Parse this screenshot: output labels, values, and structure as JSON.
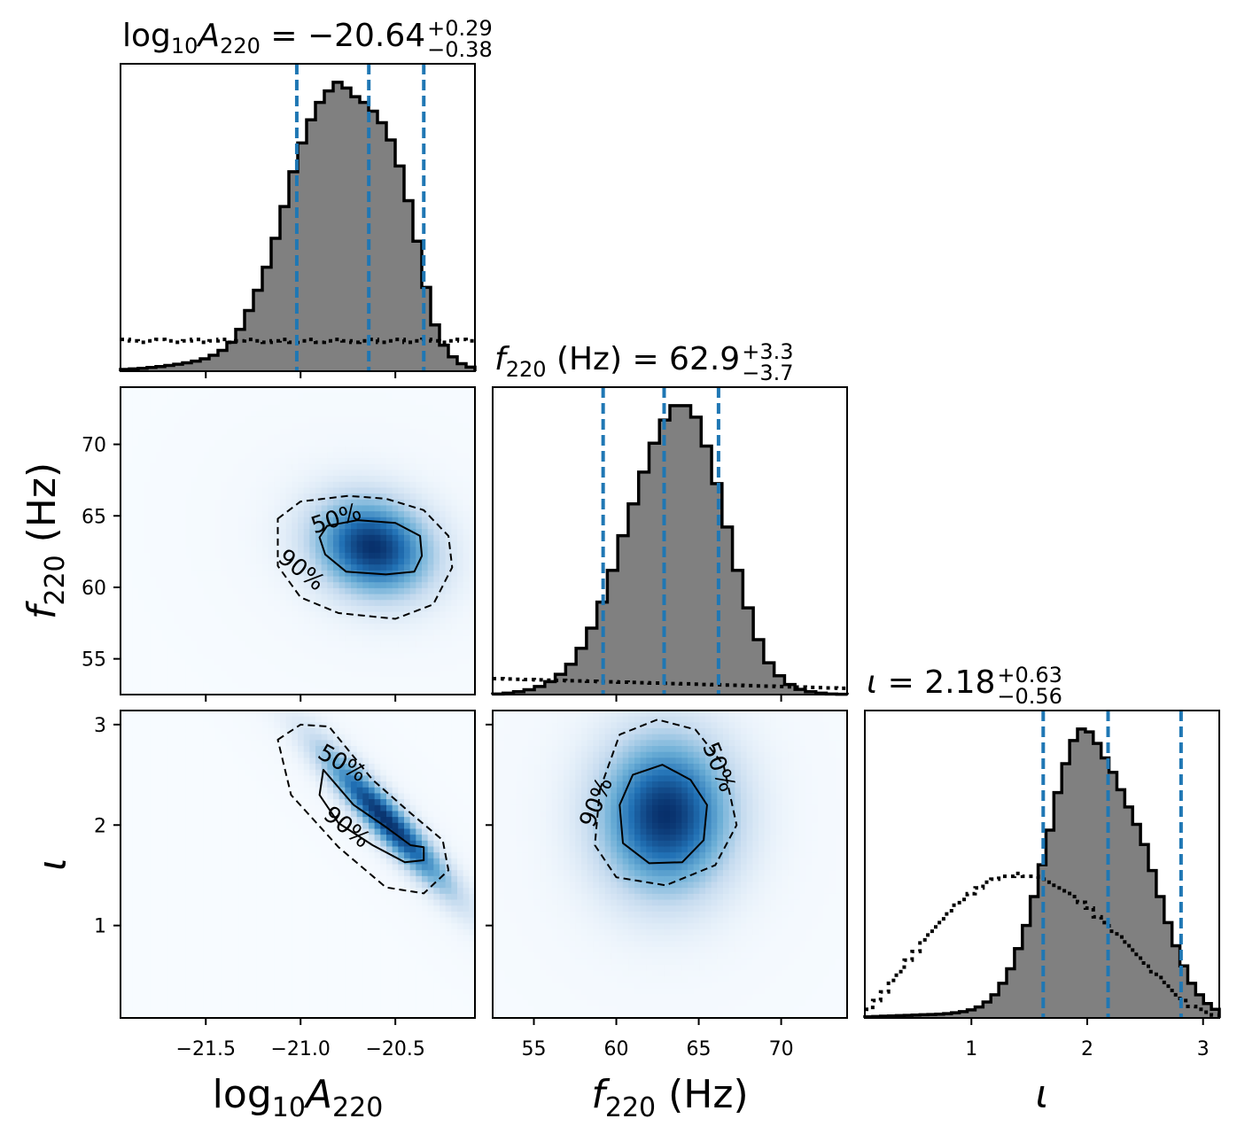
{
  "colors": {
    "histogram_fill": "#808080",
    "histogram_edge": "#000000",
    "quantile_lines": "#1f77b4",
    "density_colormap": [
      "#f7fbff",
      "#c6dbef",
      "#6baed6",
      "#2171b5",
      "#08306b"
    ],
    "contours": "#000000"
  },
  "chart_data": {
    "type": "corner",
    "parameters": [
      {
        "key": "logA",
        "axis_label_parts": {
          "main": "log",
          "sub": "10",
          "main2": "A",
          "sub2": "220",
          "unit": ""
        },
        "title": {
          "prefix_parts": [
            "log",
            "10",
            "A",
            "220"
          ],
          "equals": "=",
          "median": "−20.64",
          "plus": "+0.29",
          "minus": "−0.38"
        },
        "range": [
          -21.95,
          -20.08
        ],
        "ticks": [
          -21.5,
          -21.0,
          -20.5
        ],
        "tick_labels": [
          "−21.5",
          "−21.0",
          "−20.5"
        ],
        "quantiles": [
          -21.02,
          -20.64,
          -20.35
        ],
        "posterior_hist": [
          0.006,
          0.008,
          0.01,
          0.013,
          0.016,
          0.02,
          0.024,
          0.029,
          0.035,
          0.043,
          0.055,
          0.072,
          0.1,
          0.145,
          0.21,
          0.28,
          0.36,
          0.46,
          0.57,
          0.69,
          0.79,
          0.87,
          0.93,
          0.97,
          1.0,
          0.98,
          0.95,
          0.93,
          0.9,
          0.86,
          0.8,
          0.71,
          0.59,
          0.45,
          0.29,
          0.16,
          0.09,
          0.05,
          0.026,
          0.014
        ],
        "prior_hist": [
          0.11,
          0.105,
          0.1,
          0.105,
          0.11,
          0.105,
          0.1,
          0.105,
          0.11,
          0.1,
          0.105,
          0.11,
          0.1,
          0.105,
          0.11,
          0.105,
          0.1,
          0.105,
          0.11,
          0.1,
          0.105,
          0.11,
          0.1,
          0.105,
          0.11,
          0.105,
          0.1,
          0.105,
          0.11,
          0.1,
          0.105,
          0.11,
          0.1,
          0.105,
          0.11,
          0.105,
          0.1,
          0.105,
          0.11,
          0.105
        ]
      },
      {
        "key": "f220",
        "axis_label_parts": {
          "main": "f",
          "sub": "220",
          "unit": " (Hz)"
        },
        "title": {
          "prefix_parts": [
            "f",
            "220",
            " (Hz)"
          ],
          "equals": "=",
          "median": "62.9",
          "plus": "+3.3",
          "minus": "−3.7"
        },
        "range": [
          52.5,
          74.0
        ],
        "ticks": [
          55,
          60,
          65,
          70
        ],
        "tick_labels": [
          "55",
          "60",
          "65",
          "70"
        ],
        "ticks_diag": [
          60,
          70
        ],
        "tick_labels_diag": [
          "60",
          "70"
        ],
        "quantiles": [
          59.2,
          62.9,
          66.2
        ],
        "posterior_hist": [
          0.002,
          0.005,
          0.01,
          0.017,
          0.028,
          0.045,
          0.07,
          0.105,
          0.16,
          0.23,
          0.32,
          0.43,
          0.55,
          0.66,
          0.77,
          0.87,
          0.95,
          1.0,
          1.0,
          0.96,
          0.86,
          0.73,
          0.58,
          0.43,
          0.3,
          0.19,
          0.11,
          0.065,
          0.035,
          0.018,
          0.01,
          0.005,
          0.002,
          0.001
        ],
        "prior_hist": [
          0.055,
          0.054,
          0.053,
          0.052,
          0.051,
          0.05,
          0.049,
          0.048,
          0.047,
          0.046,
          0.045,
          0.044,
          0.043,
          0.042,
          0.041,
          0.04,
          0.039,
          0.038,
          0.037,
          0.036,
          0.035,
          0.034,
          0.033,
          0.032,
          0.031,
          0.03,
          0.029,
          0.028,
          0.027,
          0.026,
          0.025,
          0.024,
          0.023,
          0.022
        ]
      },
      {
        "key": "iota",
        "axis_label_parts": {
          "main": "ι",
          "unit": ""
        },
        "title": {
          "prefix_parts": [
            "ι"
          ],
          "equals": "=",
          "median": "2.18",
          "plus": "+0.63",
          "minus": "−0.56"
        },
        "range": [
          0.08,
          3.14
        ],
        "ticks": [
          1,
          2,
          3
        ],
        "tick_labels": [
          "1",
          "2",
          "3"
        ],
        "quantiles": [
          1.62,
          2.18,
          2.81
        ],
        "posterior_hist": [
          0.004,
          0.005,
          0.006,
          0.007,
          0.008,
          0.009,
          0.01,
          0.011,
          0.012,
          0.013,
          0.015,
          0.018,
          0.022,
          0.028,
          0.038,
          0.055,
          0.08,
          0.12,
          0.17,
          0.24,
          0.32,
          0.42,
          0.53,
          0.65,
          0.78,
          0.88,
          0.96,
          1.0,
          0.99,
          0.95,
          0.9,
          0.85,
          0.79,
          0.73,
          0.67,
          0.6,
          0.51,
          0.42,
          0.33,
          0.25,
          0.18,
          0.12,
          0.08,
          0.05,
          0.03
        ],
        "prior_hist": [
          0.03,
          0.06,
          0.09,
          0.13,
          0.16,
          0.2,
          0.23,
          0.27,
          0.3,
          0.33,
          0.36,
          0.39,
          0.41,
          0.43,
          0.45,
          0.47,
          0.48,
          0.49,
          0.49,
          0.5,
          0.49,
          0.49,
          0.48,
          0.47,
          0.45,
          0.44,
          0.42,
          0.4,
          0.38,
          0.35,
          0.33,
          0.3,
          0.28,
          0.25,
          0.22,
          0.19,
          0.16,
          0.14,
          0.11,
          0.08,
          0.06,
          0.04,
          0.03,
          0.02,
          0.01
        ]
      }
    ],
    "joint_panels": [
      {
        "x": "logA",
        "y": "f220",
        "density_peak": [
          -20.62,
          62.8
        ],
        "density_sigma": [
          0.2,
          2.2
        ],
        "rho": -0.15,
        "contour_50": [
          [
            -20.9,
            63.5
          ],
          [
            -20.86,
            64.3
          ],
          [
            -20.7,
            64.7
          ],
          [
            -20.5,
            64.5
          ],
          [
            -20.37,
            63.6
          ],
          [
            -20.36,
            62.2
          ],
          [
            -20.4,
            61.1
          ],
          [
            -20.55,
            60.9
          ],
          [
            -20.76,
            61.1
          ],
          [
            -20.87,
            62.3
          ]
        ],
        "contour_90": [
          [
            -21.12,
            64.8
          ],
          [
            -21.0,
            66.0
          ],
          [
            -20.75,
            66.4
          ],
          [
            -20.55,
            66.2
          ],
          [
            -20.35,
            65.4
          ],
          [
            -20.22,
            63.6
          ],
          [
            -20.2,
            61.4
          ],
          [
            -20.3,
            58.8
          ],
          [
            -20.5,
            57.8
          ],
          [
            -20.8,
            58.2
          ],
          [
            -21.0,
            59.3
          ],
          [
            -21.12,
            61.5
          ]
        ],
        "contour_labels": [
          {
            "text": "50%",
            "x": -20.8,
            "y": 64.3,
            "angle": -18
          },
          {
            "text": "90%",
            "x": -21.02,
            "y": 60.8,
            "angle": 38
          }
        ]
      },
      {
        "x": "logA",
        "y": "iota",
        "density_peak": [
          -20.55,
          2.05
        ],
        "density_sigma": [
          0.22,
          0.45
        ],
        "rho": -0.93,
        "contour_50": [
          [
            -20.88,
            2.55
          ],
          [
            -20.72,
            2.2
          ],
          [
            -20.55,
            1.98
          ],
          [
            -20.42,
            1.8
          ],
          [
            -20.35,
            1.78
          ],
          [
            -20.35,
            1.65
          ],
          [
            -20.45,
            1.63
          ],
          [
            -20.62,
            1.8
          ],
          [
            -20.8,
            2.02
          ],
          [
            -20.9,
            2.3
          ]
        ],
        "contour_90": [
          [
            -21.12,
            2.85
          ],
          [
            -21.0,
            3.0
          ],
          [
            -20.85,
            2.98
          ],
          [
            -20.62,
            2.45
          ],
          [
            -20.42,
            2.12
          ],
          [
            -20.25,
            1.85
          ],
          [
            -20.22,
            1.55
          ],
          [
            -20.35,
            1.32
          ],
          [
            -20.55,
            1.38
          ],
          [
            -20.8,
            1.78
          ],
          [
            -21.05,
            2.3
          ]
        ],
        "contour_labels": [
          {
            "text": "50%",
            "x": -20.8,
            "y": 2.55,
            "angle": 30
          },
          {
            "text": "90%",
            "x": -20.78,
            "y": 1.92,
            "angle": 38
          }
        ]
      },
      {
        "x": "f220",
        "y": "iota",
        "density_peak": [
          63.0,
          2.1
        ],
        "density_sigma": [
          2.6,
          0.5
        ],
        "rho": 0.0,
        "contour_50": [
          [
            61.0,
            2.5
          ],
          [
            62.8,
            2.6
          ],
          [
            64.5,
            2.45
          ],
          [
            65.5,
            2.2
          ],
          [
            65.3,
            1.85
          ],
          [
            64.0,
            1.63
          ],
          [
            62.0,
            1.62
          ],
          [
            60.4,
            1.82
          ],
          [
            60.2,
            2.2
          ]
        ],
        "contour_90": [
          [
            59.0,
            2.35
          ],
          [
            60.2,
            2.9
          ],
          [
            62.5,
            3.05
          ],
          [
            64.8,
            2.95
          ],
          [
            66.5,
            2.6
          ],
          [
            67.3,
            2.0
          ],
          [
            66.0,
            1.6
          ],
          [
            63.0,
            1.4
          ],
          [
            60.0,
            1.48
          ],
          [
            58.7,
            1.8
          ]
        ],
        "contour_labels": [
          {
            "text": "50%",
            "x": 65.8,
            "y": 2.55,
            "angle": 68
          },
          {
            "text": "90%",
            "x": 59.2,
            "y": 2.2,
            "angle": -68
          }
        ]
      }
    ]
  }
}
